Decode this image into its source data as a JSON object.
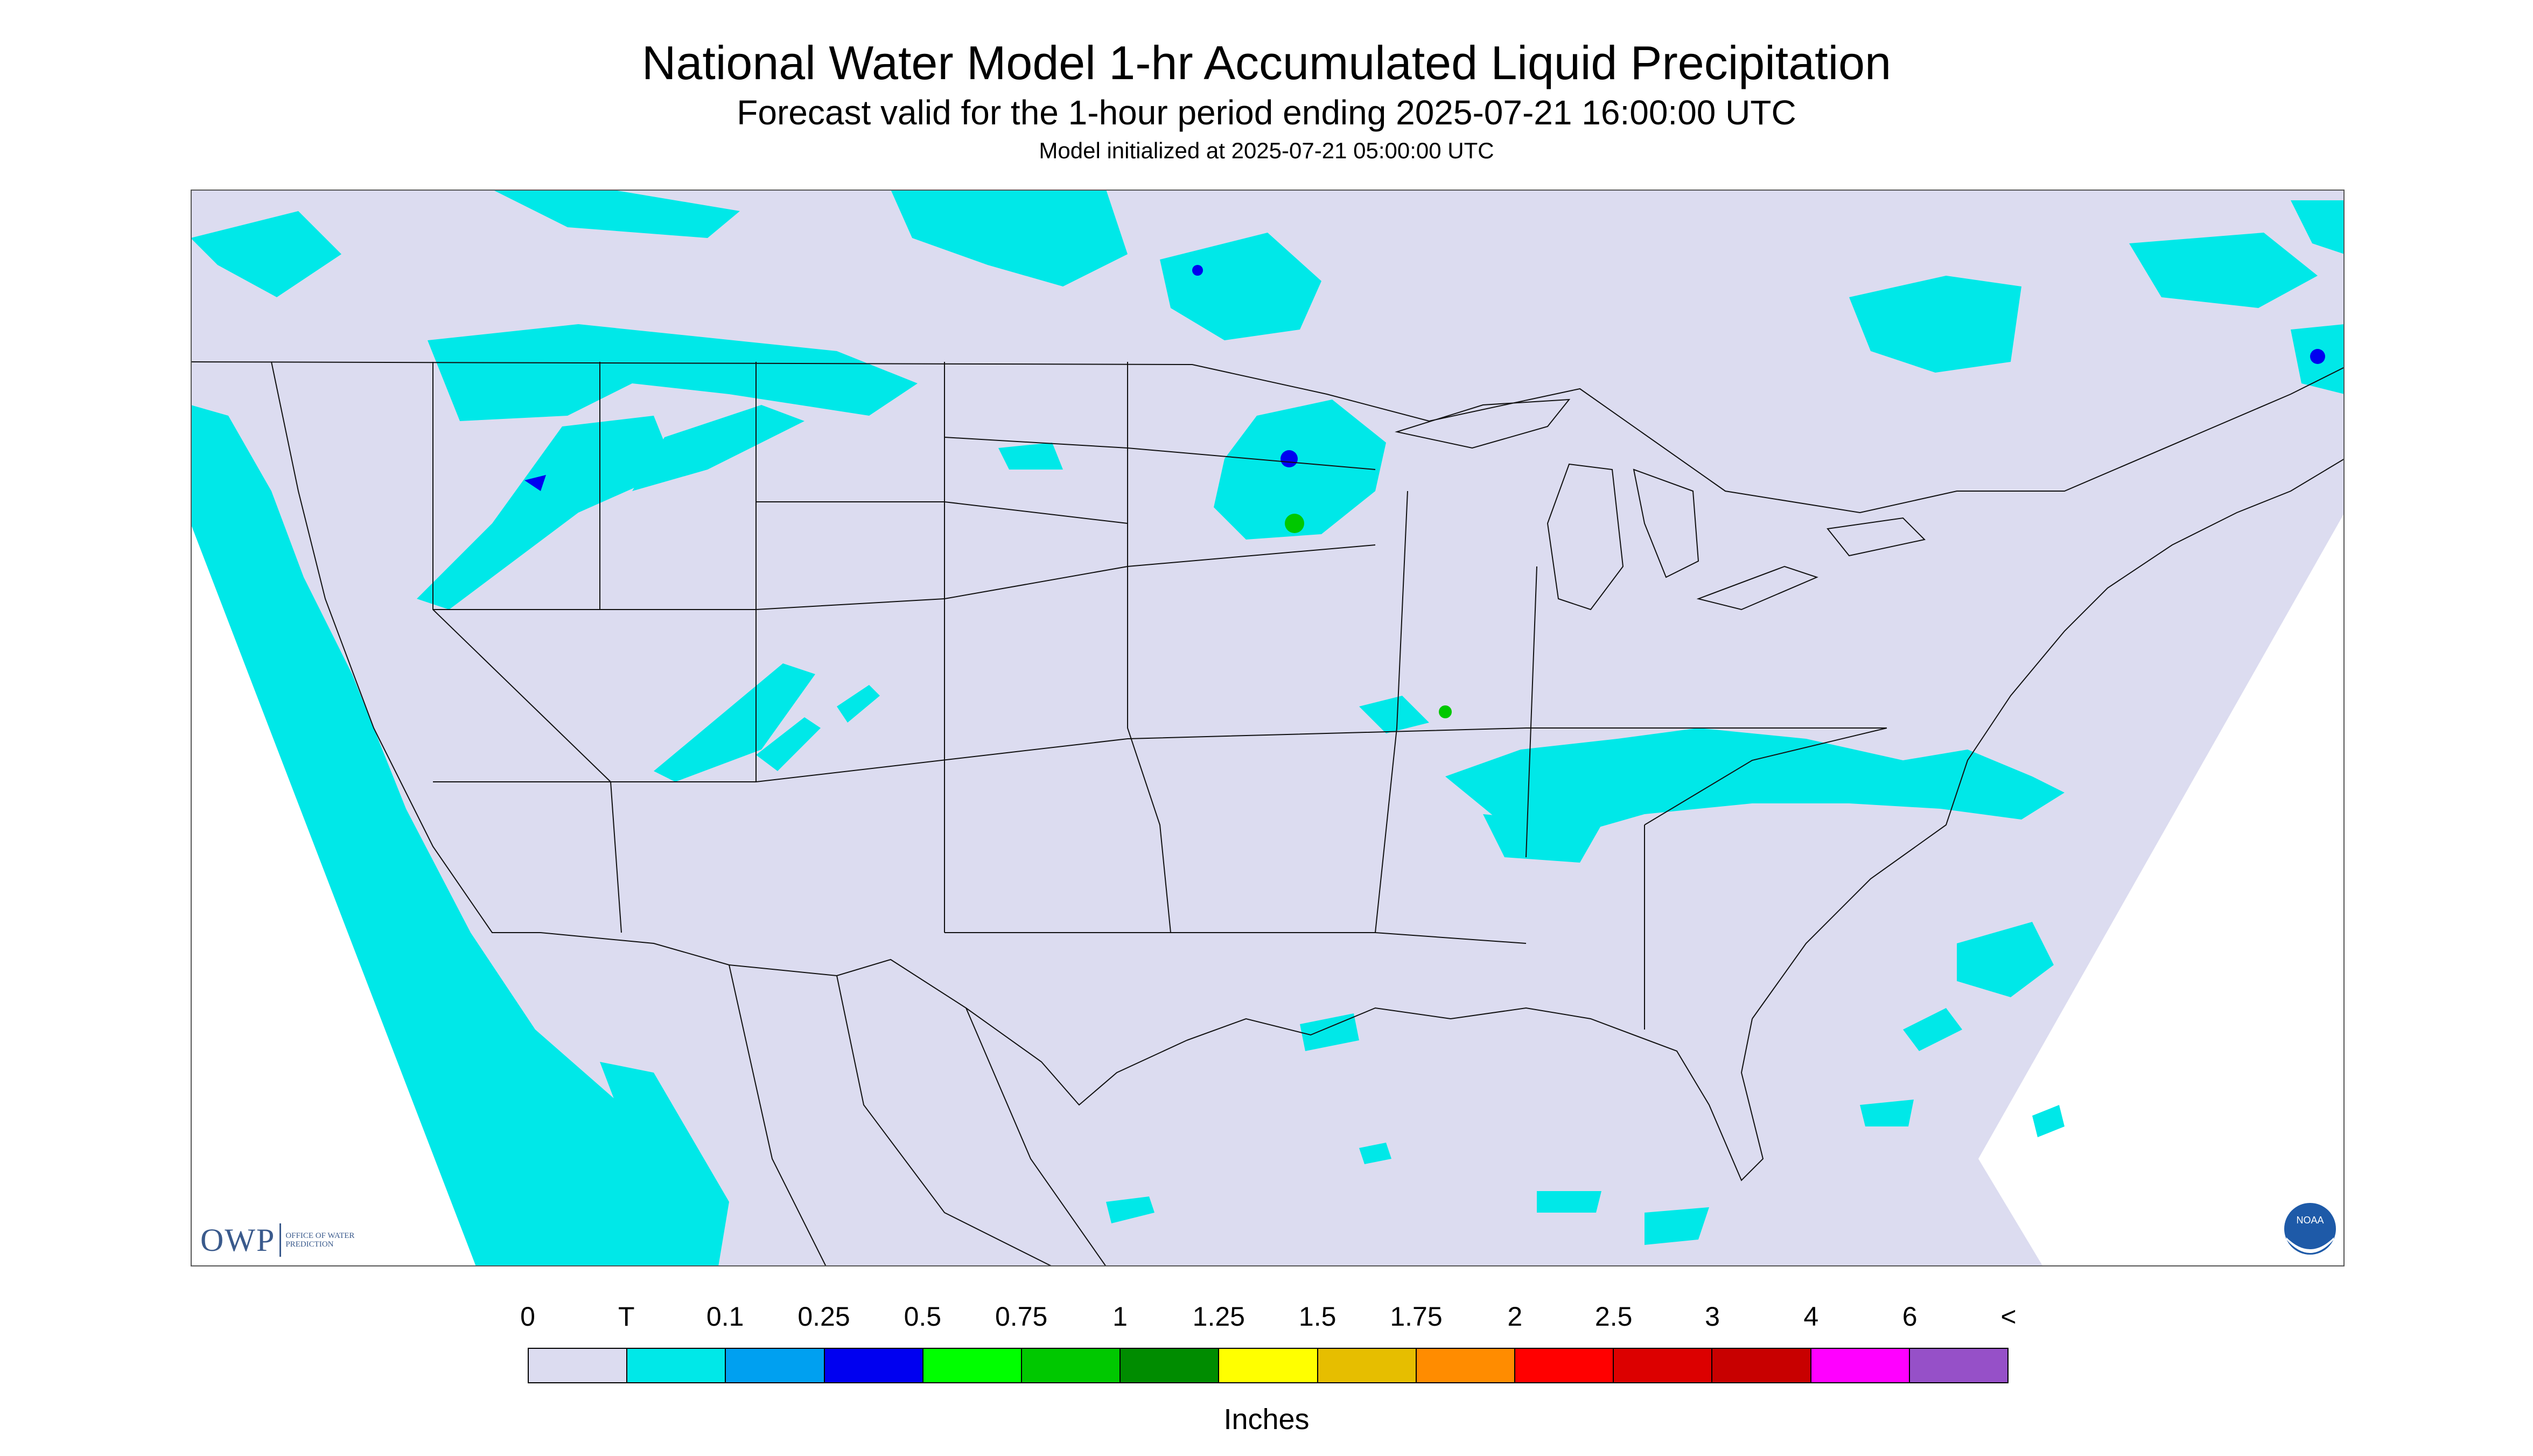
{
  "header": {
    "title": "National Water Model 1-hr Accumulated Liquid Precipitation",
    "subtitle": "Forecast valid for the 1-hour period ending 2025-07-21 16:00:00 UTC",
    "init": "Model initialized at 2025-07-21 05:00:00 UTC"
  },
  "map": {
    "background_color": "#dcdcf0",
    "outside_color": "#ffffff",
    "region": "CONUS"
  },
  "legend": {
    "labels": [
      "0",
      "T",
      "0.1",
      "0.25",
      "0.5",
      "0.75",
      "1",
      "1.25",
      "1.5",
      "1.75",
      "2",
      "2.5",
      "3",
      "4",
      "6",
      "<"
    ],
    "colors": [
      "#dcdcf0",
      "#00e8e8",
      "#00a0f0",
      "#0000f0",
      "#00ff00",
      "#00c800",
      "#008c00",
      "#ffff00",
      "#e6be00",
      "#ff8c00",
      "#ff0000",
      "#dc0000",
      "#c80000",
      "#ff00ff",
      "#9650c8"
    ],
    "units": "Inches"
  },
  "logos": {
    "owp_mark": "OWP",
    "owp_text": "OFFICE OF WATER PREDICTION",
    "noaa_text": "NOAA"
  }
}
